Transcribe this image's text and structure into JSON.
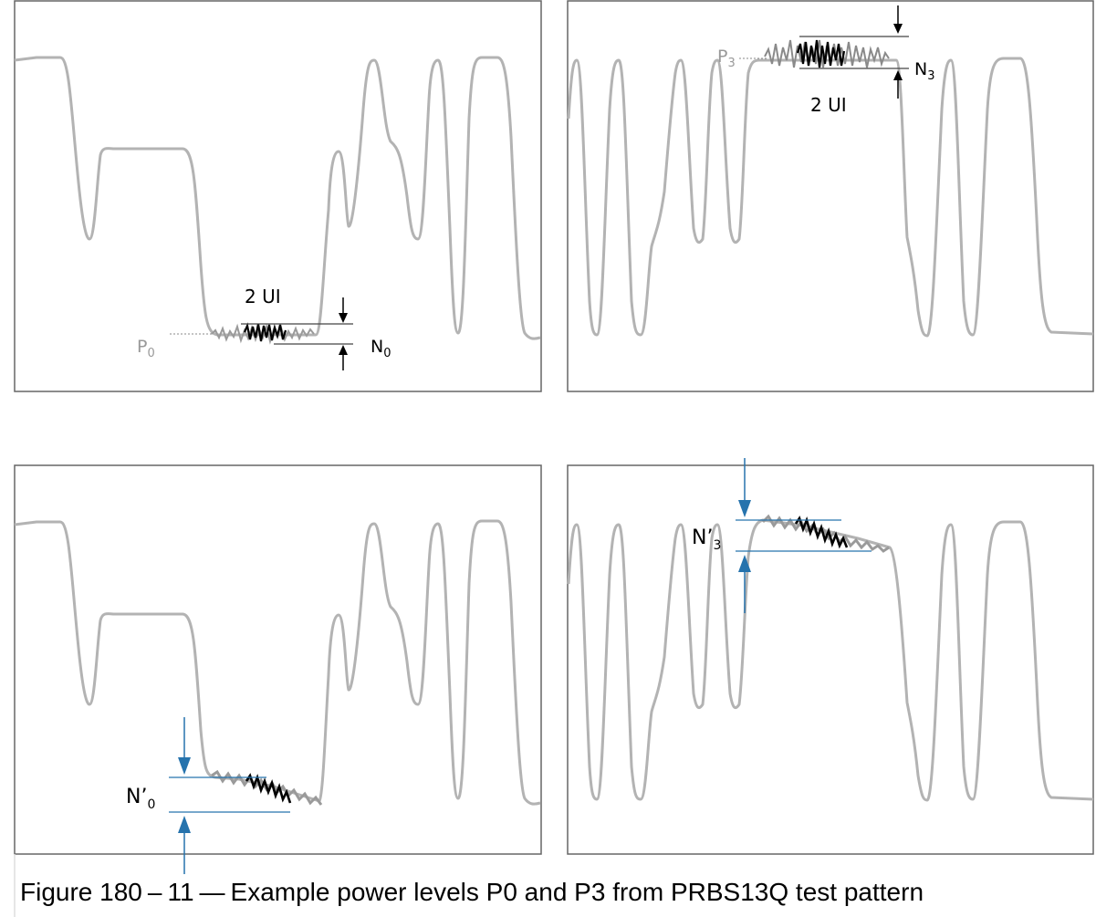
{
  "panels": [
    {
      "id": "top-left",
      "level_label_main": "P",
      "level_label_sub": "0",
      "ui_label": "2 UI",
      "noise_label_main": "N",
      "noise_label_sub": "0"
    },
    {
      "id": "top-right",
      "level_label_main": "P",
      "level_label_sub": "3",
      "ui_label": "2 UI",
      "noise_label_main": "N",
      "noise_label_sub": "3"
    },
    {
      "id": "bottom-left",
      "noise_label_main": "N’",
      "noise_label_sub": "0"
    },
    {
      "id": "bottom-right",
      "noise_label_main": "N’",
      "noise_label_sub": "3"
    }
  ],
  "caption": {
    "number": "Figure 180",
    "separator": "–",
    "fig_index": "11",
    "separator2": "—",
    "text": "Example power levels P0 and P3 from PRBS13Q test pattern"
  },
  "colors": {
    "trace": "#b3b3b3",
    "noise_gray": "#8a8a8a",
    "noise_dark": "#000000",
    "arrow_blue": "#2673ad",
    "frame": "#555555"
  }
}
